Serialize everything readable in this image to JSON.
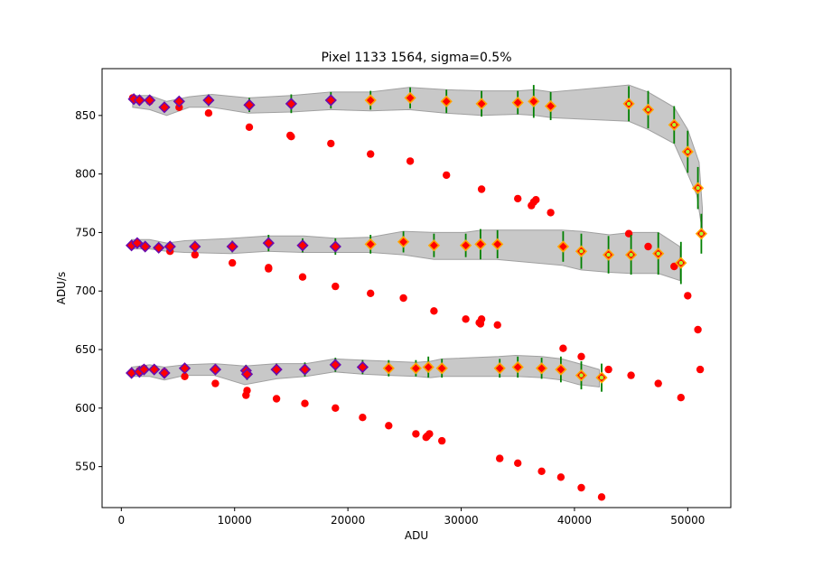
{
  "chart_data": {
    "type": "scatter",
    "title": "Pixel 1133 1564, sigma=0.5%",
    "xlabel": "ADU",
    "ylabel": "ADU/s",
    "xlim": [
      -1700,
      53800
    ],
    "ylim": [
      515,
      890
    ],
    "xticks": [
      0,
      10000,
      20000,
      30000,
      40000,
      50000
    ],
    "yticks": [
      550,
      600,
      650,
      700,
      750,
      800,
      850
    ],
    "grid": false,
    "legend": "none",
    "colors": {
      "band_fill": "#c8c8c8",
      "band_edge": "#a0a0a0",
      "errorbar": "#008000",
      "raw_points": "#ff0000",
      "marker_edge_low": "#6a0dad",
      "marker_edge_high": "#ffa500",
      "marker_center_high": "#adff2f"
    },
    "bands": [
      {
        "upper": [
          [
            1000,
            867
          ],
          [
            2500,
            867
          ],
          [
            4000,
            862
          ],
          [
            6000,
            866
          ],
          [
            8000,
            868
          ],
          [
            11200,
            865
          ],
          [
            15000,
            867
          ],
          [
            18500,
            870
          ],
          [
            22000,
            870
          ],
          [
            25400,
            874
          ],
          [
            28600,
            872
          ],
          [
            31800,
            871
          ],
          [
            35000,
            871
          ],
          [
            36500,
            872
          ],
          [
            38000,
            870
          ],
          [
            44800,
            876
          ],
          [
            46500,
            870
          ],
          [
            48800,
            857
          ],
          [
            50000,
            838
          ],
          [
            51000,
            810
          ],
          [
            51300,
            770
          ]
        ],
        "lower": [
          [
            51300,
            750
          ],
          [
            50800,
            782
          ],
          [
            50000,
            800
          ],
          [
            48800,
            826
          ],
          [
            46500,
            838
          ],
          [
            44800,
            845
          ],
          [
            38000,
            848
          ],
          [
            36500,
            850
          ],
          [
            35000,
            851
          ],
          [
            31800,
            850
          ],
          [
            28600,
            852
          ],
          [
            25400,
            855
          ],
          [
            22000,
            854
          ],
          [
            18500,
            855
          ],
          [
            15000,
            853
          ],
          [
            11200,
            852
          ],
          [
            8000,
            857
          ],
          [
            6000,
            857
          ],
          [
            4000,
            850
          ],
          [
            2500,
            855
          ],
          [
            1000,
            857
          ]
        ]
      },
      {
        "upper": [
          [
            900,
            744
          ],
          [
            2500,
            744
          ],
          [
            4000,
            741
          ],
          [
            5600,
            743
          ],
          [
            9700,
            745
          ],
          [
            12900,
            747
          ],
          [
            16100,
            747
          ],
          [
            19000,
            745
          ],
          [
            22000,
            746
          ],
          [
            24900,
            751
          ],
          [
            27600,
            750
          ],
          [
            30300,
            750
          ],
          [
            31800,
            752
          ],
          [
            33100,
            752
          ],
          [
            38900,
            752
          ],
          [
            40600,
            751
          ],
          [
            43100,
            748
          ],
          [
            45000,
            750
          ],
          [
            47400,
            750
          ],
          [
            49300,
            738
          ]
        ],
        "lower": [
          [
            49300,
            709
          ],
          [
            47400,
            715
          ],
          [
            45000,
            715
          ],
          [
            43100,
            716
          ],
          [
            40600,
            718
          ],
          [
            38900,
            722
          ],
          [
            33100,
            727
          ],
          [
            31800,
            727
          ],
          [
            30300,
            727
          ],
          [
            27600,
            727
          ],
          [
            24900,
            731
          ],
          [
            22000,
            733
          ],
          [
            19000,
            733
          ],
          [
            16100,
            733
          ],
          [
            12900,
            734
          ],
          [
            9700,
            732
          ],
          [
            5600,
            733
          ],
          [
            4000,
            734
          ],
          [
            2500,
            736
          ],
          [
            900,
            736
          ]
        ]
      },
      {
        "upper": [
          [
            900,
            635
          ],
          [
            2500,
            637
          ],
          [
            3800,
            635
          ],
          [
            5600,
            637
          ],
          [
            8200,
            638
          ],
          [
            10900,
            636
          ],
          [
            13700,
            638
          ],
          [
            16300,
            638
          ],
          [
            18800,
            642
          ],
          [
            21300,
            641
          ],
          [
            23600,
            640
          ],
          [
            26000,
            639
          ],
          [
            27300,
            640
          ],
          [
            28300,
            642
          ],
          [
            33300,
            644
          ],
          [
            34800,
            645
          ],
          [
            37100,
            644
          ],
          [
            38900,
            642
          ],
          [
            40400,
            638
          ],
          [
            42200,
            633
          ]
        ],
        "lower": [
          [
            42200,
            618
          ],
          [
            40400,
            620
          ],
          [
            38900,
            624
          ],
          [
            37100,
            626
          ],
          [
            34800,
            627
          ],
          [
            33300,
            627
          ],
          [
            28300,
            627
          ],
          [
            27300,
            626
          ],
          [
            26000,
            627
          ],
          [
            23600,
            628
          ],
          [
            21300,
            629
          ],
          [
            18800,
            631
          ],
          [
            16300,
            627
          ],
          [
            13700,
            625
          ],
          [
            10900,
            620
          ],
          [
            8200,
            628
          ],
          [
            5600,
            628
          ],
          [
            3800,
            624
          ],
          [
            2500,
            627
          ],
          [
            900,
            627
          ]
        ]
      }
    ],
    "raw_points": [
      [
        1000,
        865
      ],
      [
        1600,
        863
      ],
      [
        2500,
        862
      ],
      [
        3800,
        857
      ],
      [
        5100,
        857
      ],
      [
        7700,
        852
      ],
      [
        11300,
        840
      ],
      [
        14900,
        833
      ],
      [
        15000,
        832
      ],
      [
        18500,
        826
      ],
      [
        22000,
        817
      ],
      [
        25500,
        811
      ],
      [
        28700,
        799
      ],
      [
        31800,
        787
      ],
      [
        35000,
        779
      ],
      [
        36200,
        773
      ],
      [
        36400,
        776
      ],
      [
        36600,
        778
      ],
      [
        37900,
        767
      ],
      [
        44800,
        749
      ],
      [
        46500,
        738
      ],
      [
        48800,
        721
      ],
      [
        50000,
        696
      ],
      [
        50900,
        667
      ],
      [
        51100,
        633
      ],
      [
        900,
        739
      ],
      [
        1400,
        741
      ],
      [
        2100,
        738
      ],
      [
        3300,
        737
      ],
      [
        4300,
        734
      ],
      [
        6500,
        731
      ],
      [
        9800,
        724
      ],
      [
        13000,
        720
      ],
      [
        13000,
        719
      ],
      [
        16000,
        712
      ],
      [
        18900,
        704
      ],
      [
        22000,
        698
      ],
      [
        24900,
        694
      ],
      [
        27600,
        683
      ],
      [
        30400,
        676
      ],
      [
        31600,
        673
      ],
      [
        31700,
        672
      ],
      [
        31800,
        676
      ],
      [
        33200,
        671
      ],
      [
        39000,
        651
      ],
      [
        40600,
        644
      ],
      [
        43000,
        633
      ],
      [
        45000,
        628
      ],
      [
        47400,
        621
      ],
      [
        49400,
        609
      ],
      [
        900,
        630
      ],
      [
        1600,
        632
      ],
      [
        2000,
        634
      ],
      [
        2900,
        633
      ],
      [
        3800,
        631
      ],
      [
        5600,
        627
      ],
      [
        8300,
        621
      ],
      [
        11000,
        611
      ],
      [
        11100,
        615
      ],
      [
        13700,
        608
      ],
      [
        16200,
        604
      ],
      [
        18900,
        600
      ],
      [
        21300,
        592
      ],
      [
        23600,
        585
      ],
      [
        26000,
        578
      ],
      [
        26900,
        575
      ],
      [
        27000,
        576
      ],
      [
        27200,
        578
      ],
      [
        28300,
        572
      ],
      [
        33400,
        557
      ],
      [
        35000,
        553
      ],
      [
        37100,
        546
      ],
      [
        38800,
        541
      ],
      [
        40600,
        532
      ],
      [
        42400,
        524
      ]
    ],
    "corrected_points": [
      {
        "x": 1100,
        "y": 864,
        "err": 2
      },
      {
        "x": 1600,
        "y": 863,
        "err": 2
      },
      {
        "x": 2500,
        "y": 863,
        "err": 2
      },
      {
        "x": 3800,
        "y": 857,
        "err": 2
      },
      {
        "x": 5100,
        "y": 862,
        "err": 4
      },
      {
        "x": 7700,
        "y": 863,
        "err": 5
      },
      {
        "x": 11300,
        "y": 859,
        "err": 6
      },
      {
        "x": 15000,
        "y": 860,
        "err": 8
      },
      {
        "x": 18500,
        "y": 863,
        "err": 7
      },
      {
        "x": 22000,
        "y": 863,
        "err": 8
      },
      {
        "x": 25500,
        "y": 865,
        "err": 9
      },
      {
        "x": 28700,
        "y": 862,
        "err": 10
      },
      {
        "x": 31800,
        "y": 860,
        "err": 11
      },
      {
        "x": 35000,
        "y": 861,
        "err": 10
      },
      {
        "x": 36400,
        "y": 862,
        "err": 14
      },
      {
        "x": 37900,
        "y": 858,
        "err": 12
      },
      {
        "x": 44800,
        "y": 860,
        "err": 15
      },
      {
        "x": 46500,
        "y": 855,
        "err": 16
      },
      {
        "x": 48800,
        "y": 842,
        "err": 16
      },
      {
        "x": 50000,
        "y": 819,
        "err": 18
      },
      {
        "x": 50900,
        "y": 788,
        "err": 18
      },
      {
        "x": 51200,
        "y": 749,
        "err": 17
      },
      {
        "x": 900,
        "y": 739,
        "err": 2
      },
      {
        "x": 1400,
        "y": 741,
        "err": 2
      },
      {
        "x": 2100,
        "y": 738,
        "err": 2
      },
      {
        "x": 3300,
        "y": 737,
        "err": 2
      },
      {
        "x": 4300,
        "y": 738,
        "err": 3
      },
      {
        "x": 6500,
        "y": 738,
        "err": 4
      },
      {
        "x": 9800,
        "y": 738,
        "err": 5
      },
      {
        "x": 13000,
        "y": 741,
        "err": 7
      },
      {
        "x": 16000,
        "y": 739,
        "err": 6
      },
      {
        "x": 18900,
        "y": 738,
        "err": 7
      },
      {
        "x": 22000,
        "y": 740,
        "err": 8
      },
      {
        "x": 24900,
        "y": 742,
        "err": 9
      },
      {
        "x": 27600,
        "y": 739,
        "err": 10
      },
      {
        "x": 30400,
        "y": 739,
        "err": 10
      },
      {
        "x": 31700,
        "y": 740,
        "err": 13
      },
      {
        "x": 33200,
        "y": 740,
        "err": 12
      },
      {
        "x": 39000,
        "y": 738,
        "err": 13
      },
      {
        "x": 40600,
        "y": 734,
        "err": 15
      },
      {
        "x": 43000,
        "y": 731,
        "err": 16
      },
      {
        "x": 45000,
        "y": 731,
        "err": 17
      },
      {
        "x": 47400,
        "y": 732,
        "err": 18
      },
      {
        "x": 49400,
        "y": 724,
        "err": 18
      },
      {
        "x": 900,
        "y": 630,
        "err": 2
      },
      {
        "x": 1600,
        "y": 631,
        "err": 2
      },
      {
        "x": 2000,
        "y": 633,
        "err": 2
      },
      {
        "x": 2900,
        "y": 633,
        "err": 2
      },
      {
        "x": 3800,
        "y": 630,
        "err": 2
      },
      {
        "x": 5600,
        "y": 634,
        "err": 3
      },
      {
        "x": 8300,
        "y": 633,
        "err": 4
      },
      {
        "x": 11000,
        "y": 632,
        "err": 5
      },
      {
        "x": 11100,
        "y": 629,
        "err": 5
      },
      {
        "x": 13700,
        "y": 633,
        "err": 5
      },
      {
        "x": 16200,
        "y": 633,
        "err": 6
      },
      {
        "x": 18900,
        "y": 637,
        "err": 6
      },
      {
        "x": 21300,
        "y": 635,
        "err": 6
      },
      {
        "x": 23600,
        "y": 634,
        "err": 7
      },
      {
        "x": 26000,
        "y": 634,
        "err": 7
      },
      {
        "x": 27100,
        "y": 635,
        "err": 9
      },
      {
        "x": 28300,
        "y": 634,
        "err": 8
      },
      {
        "x": 33400,
        "y": 634,
        "err": 8
      },
      {
        "x": 35000,
        "y": 635,
        "err": 9
      },
      {
        "x": 37100,
        "y": 634,
        "err": 9
      },
      {
        "x": 38800,
        "y": 633,
        "err": 11
      },
      {
        "x": 40600,
        "y": 628,
        "err": 12
      },
      {
        "x": 42400,
        "y": 626,
        "err": 12
      }
    ]
  }
}
